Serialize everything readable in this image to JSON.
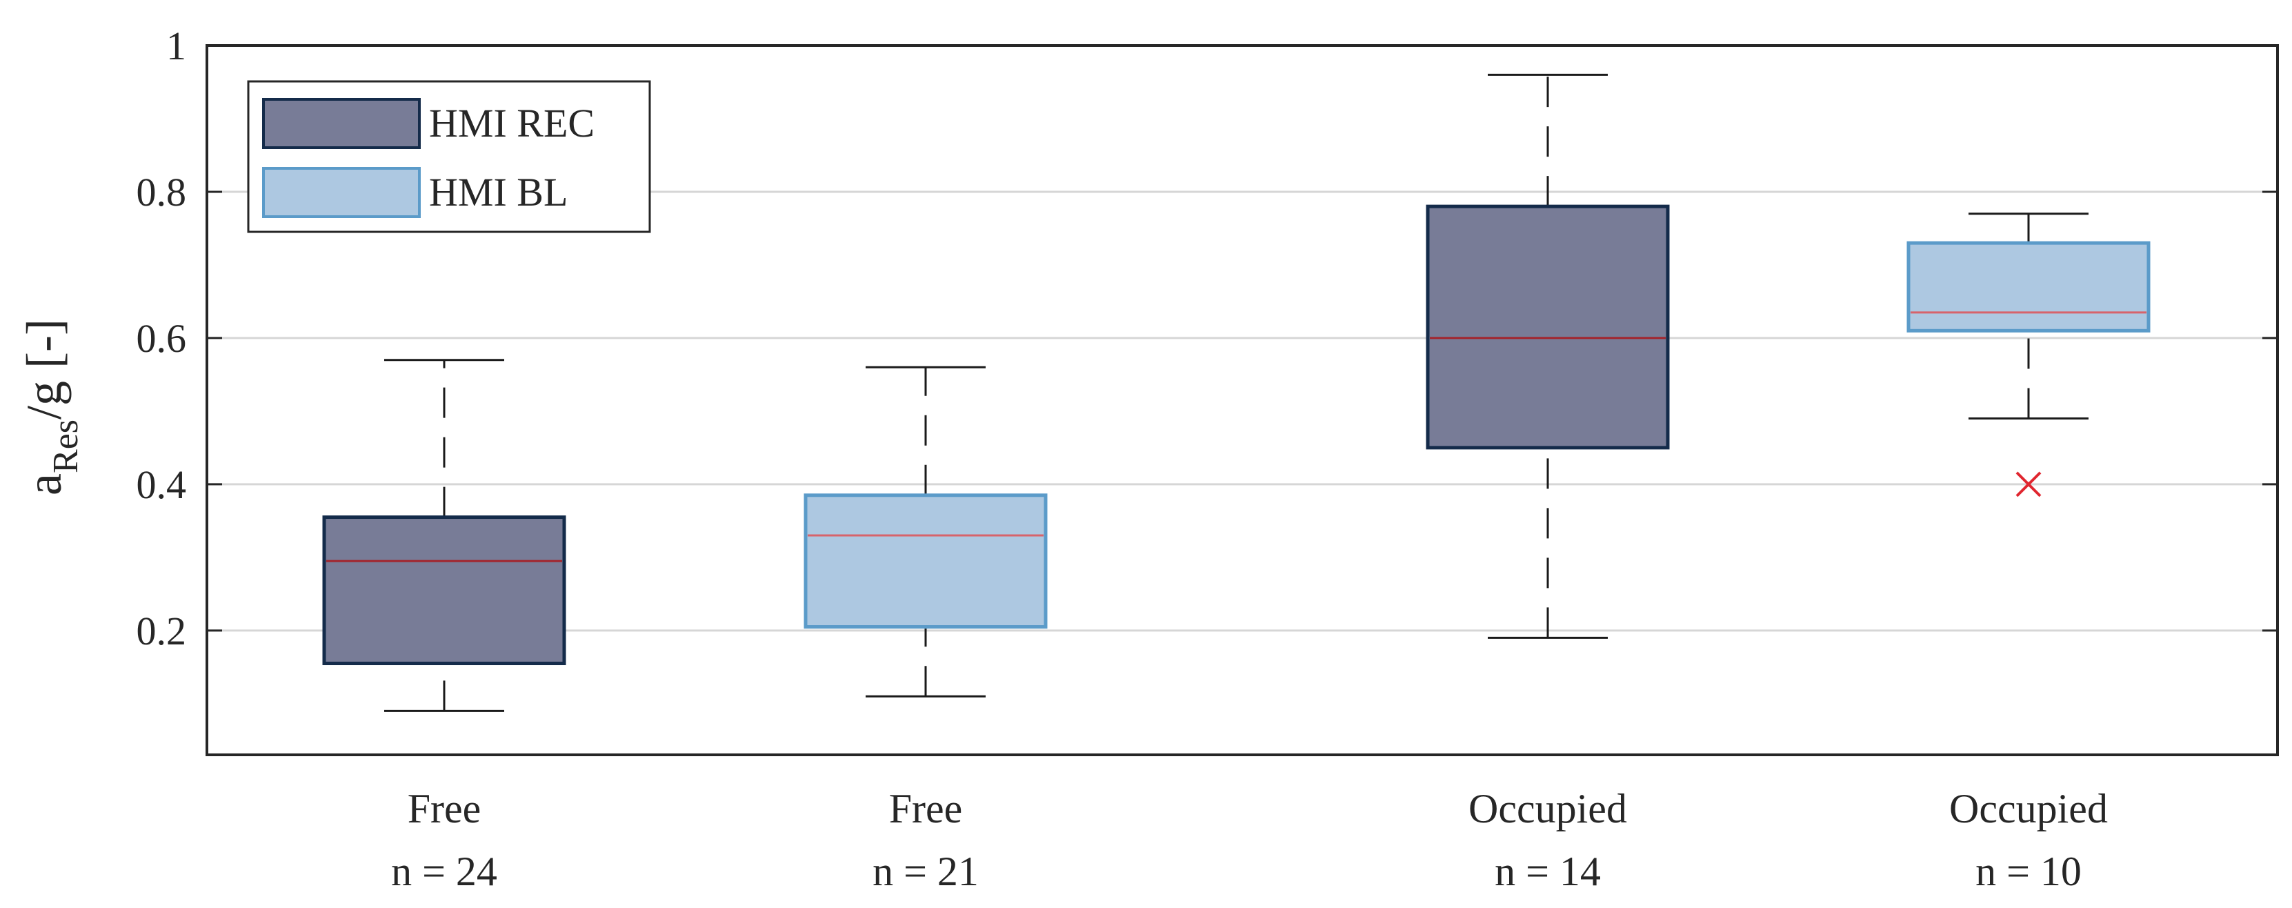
{
  "chart_data": {
    "type": "boxplot",
    "ylabel_main": "a",
    "ylabel_sub": "Res",
    "ylabel_tail": "/g [-]",
    "ylim": [
      0.03,
      1.0
    ],
    "yticks": [
      0.2,
      0.4,
      0.6,
      0.8,
      1
    ],
    "ytick_labels": [
      "0.2",
      "0.4",
      "0.6",
      "0.8",
      "1"
    ],
    "grid": "horizontal",
    "legend_placement": "top-left",
    "colors": {
      "HMI REC": {
        "fill": "#787c97",
        "edge": "#142b4a",
        "median": "#a3242c"
      },
      "HMI BL": {
        "fill": "#adc8e1",
        "edge": "#5b9bc9",
        "median": "#d7636b"
      },
      "outlier": "#e0262f",
      "whisker": "#1a1a1a"
    },
    "legend": [
      {
        "name": "HMI REC"
      },
      {
        "name": "HMI BL"
      }
    ],
    "boxes": [
      {
        "series": "HMI REC",
        "category": "Free",
        "n_label": "n = 24",
        "whisker_low": 0.09,
        "q1": 0.155,
        "median": 0.295,
        "q3": 0.355,
        "whisker_high": 0.57,
        "outliers": []
      },
      {
        "series": "HMI BL",
        "category": "Free",
        "n_label": "n = 21",
        "whisker_low": 0.11,
        "q1": 0.205,
        "median": 0.33,
        "q3": 0.385,
        "whisker_high": 0.56,
        "outliers": []
      },
      {
        "series": "HMI REC",
        "category": "Occupied",
        "n_label": "n = 14",
        "whisker_low": 0.19,
        "q1": 0.45,
        "median": 0.6,
        "q3": 0.78,
        "whisker_high": 0.96,
        "outliers": []
      },
      {
        "series": "HMI BL",
        "category": "Occupied",
        "n_label": "n = 10",
        "whisker_low": 0.49,
        "q1": 0.61,
        "median": 0.635,
        "q3": 0.73,
        "whisker_high": 0.77,
        "outliers": [
          0.4
        ]
      }
    ]
  }
}
